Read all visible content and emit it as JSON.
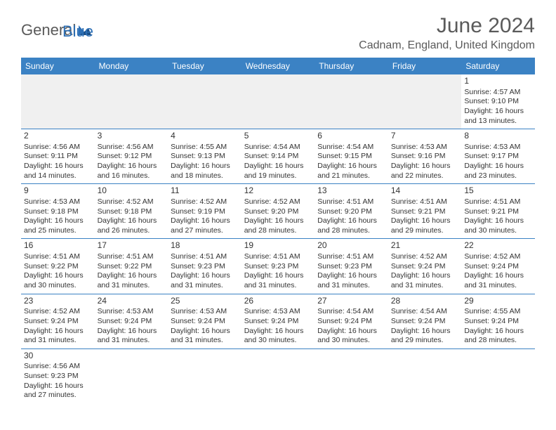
{
  "logo": {
    "text1": "General",
    "text2": "Blue"
  },
  "title": "June 2024",
  "location": "Cadnam, England, United Kingdom",
  "header_bg": "#3b82c4",
  "header_fg": "#ffffff",
  "border_color": "#3b82c4",
  "day_labels": [
    "Sunday",
    "Monday",
    "Tuesday",
    "Wednesday",
    "Thursday",
    "Friday",
    "Saturday"
  ],
  "weeks": [
    [
      null,
      null,
      null,
      null,
      null,
      null,
      {
        "n": "1",
        "sunrise": "4:57 AM",
        "sunset": "9:10 PM",
        "dl1": "16 hours",
        "dl2": "and 13 minutes."
      }
    ],
    [
      {
        "n": "2",
        "sunrise": "4:56 AM",
        "sunset": "9:11 PM",
        "dl1": "16 hours",
        "dl2": "and 14 minutes."
      },
      {
        "n": "3",
        "sunrise": "4:56 AM",
        "sunset": "9:12 PM",
        "dl1": "16 hours",
        "dl2": "and 16 minutes."
      },
      {
        "n": "4",
        "sunrise": "4:55 AM",
        "sunset": "9:13 PM",
        "dl1": "16 hours",
        "dl2": "and 18 minutes."
      },
      {
        "n": "5",
        "sunrise": "4:54 AM",
        "sunset": "9:14 PM",
        "dl1": "16 hours",
        "dl2": "and 19 minutes."
      },
      {
        "n": "6",
        "sunrise": "4:54 AM",
        "sunset": "9:15 PM",
        "dl1": "16 hours",
        "dl2": "and 21 minutes."
      },
      {
        "n": "7",
        "sunrise": "4:53 AM",
        "sunset": "9:16 PM",
        "dl1": "16 hours",
        "dl2": "and 22 minutes."
      },
      {
        "n": "8",
        "sunrise": "4:53 AM",
        "sunset": "9:17 PM",
        "dl1": "16 hours",
        "dl2": "and 23 minutes."
      }
    ],
    [
      {
        "n": "9",
        "sunrise": "4:53 AM",
        "sunset": "9:18 PM",
        "dl1": "16 hours",
        "dl2": "and 25 minutes."
      },
      {
        "n": "10",
        "sunrise": "4:52 AM",
        "sunset": "9:18 PM",
        "dl1": "16 hours",
        "dl2": "and 26 minutes."
      },
      {
        "n": "11",
        "sunrise": "4:52 AM",
        "sunset": "9:19 PM",
        "dl1": "16 hours",
        "dl2": "and 27 minutes."
      },
      {
        "n": "12",
        "sunrise": "4:52 AM",
        "sunset": "9:20 PM",
        "dl1": "16 hours",
        "dl2": "and 28 minutes."
      },
      {
        "n": "13",
        "sunrise": "4:51 AM",
        "sunset": "9:20 PM",
        "dl1": "16 hours",
        "dl2": "and 28 minutes."
      },
      {
        "n": "14",
        "sunrise": "4:51 AM",
        "sunset": "9:21 PM",
        "dl1": "16 hours",
        "dl2": "and 29 minutes."
      },
      {
        "n": "15",
        "sunrise": "4:51 AM",
        "sunset": "9:21 PM",
        "dl1": "16 hours",
        "dl2": "and 30 minutes."
      }
    ],
    [
      {
        "n": "16",
        "sunrise": "4:51 AM",
        "sunset": "9:22 PM",
        "dl1": "16 hours",
        "dl2": "and 30 minutes."
      },
      {
        "n": "17",
        "sunrise": "4:51 AM",
        "sunset": "9:22 PM",
        "dl1": "16 hours",
        "dl2": "and 31 minutes."
      },
      {
        "n": "18",
        "sunrise": "4:51 AM",
        "sunset": "9:23 PM",
        "dl1": "16 hours",
        "dl2": "and 31 minutes."
      },
      {
        "n": "19",
        "sunrise": "4:51 AM",
        "sunset": "9:23 PM",
        "dl1": "16 hours",
        "dl2": "and 31 minutes."
      },
      {
        "n": "20",
        "sunrise": "4:51 AM",
        "sunset": "9:23 PM",
        "dl1": "16 hours",
        "dl2": "and 31 minutes."
      },
      {
        "n": "21",
        "sunrise": "4:52 AM",
        "sunset": "9:24 PM",
        "dl1": "16 hours",
        "dl2": "and 31 minutes."
      },
      {
        "n": "22",
        "sunrise": "4:52 AM",
        "sunset": "9:24 PM",
        "dl1": "16 hours",
        "dl2": "and 31 minutes."
      }
    ],
    [
      {
        "n": "23",
        "sunrise": "4:52 AM",
        "sunset": "9:24 PM",
        "dl1": "16 hours",
        "dl2": "and 31 minutes."
      },
      {
        "n": "24",
        "sunrise": "4:53 AM",
        "sunset": "9:24 PM",
        "dl1": "16 hours",
        "dl2": "and 31 minutes."
      },
      {
        "n": "25",
        "sunrise": "4:53 AM",
        "sunset": "9:24 PM",
        "dl1": "16 hours",
        "dl2": "and 31 minutes."
      },
      {
        "n": "26",
        "sunrise": "4:53 AM",
        "sunset": "9:24 PM",
        "dl1": "16 hours",
        "dl2": "and 30 minutes."
      },
      {
        "n": "27",
        "sunrise": "4:54 AM",
        "sunset": "9:24 PM",
        "dl1": "16 hours",
        "dl2": "and 30 minutes."
      },
      {
        "n": "28",
        "sunrise": "4:54 AM",
        "sunset": "9:24 PM",
        "dl1": "16 hours",
        "dl2": "and 29 minutes."
      },
      {
        "n": "29",
        "sunrise": "4:55 AM",
        "sunset": "9:24 PM",
        "dl1": "16 hours",
        "dl2": "and 28 minutes."
      }
    ],
    [
      {
        "n": "30",
        "sunrise": "4:56 AM",
        "sunset": "9:23 PM",
        "dl1": "16 hours",
        "dl2": "and 27 minutes."
      },
      null,
      null,
      null,
      null,
      null,
      null
    ]
  ],
  "labels": {
    "sunrise": "Sunrise:",
    "sunset": "Sunset:",
    "daylight": "Daylight:"
  }
}
